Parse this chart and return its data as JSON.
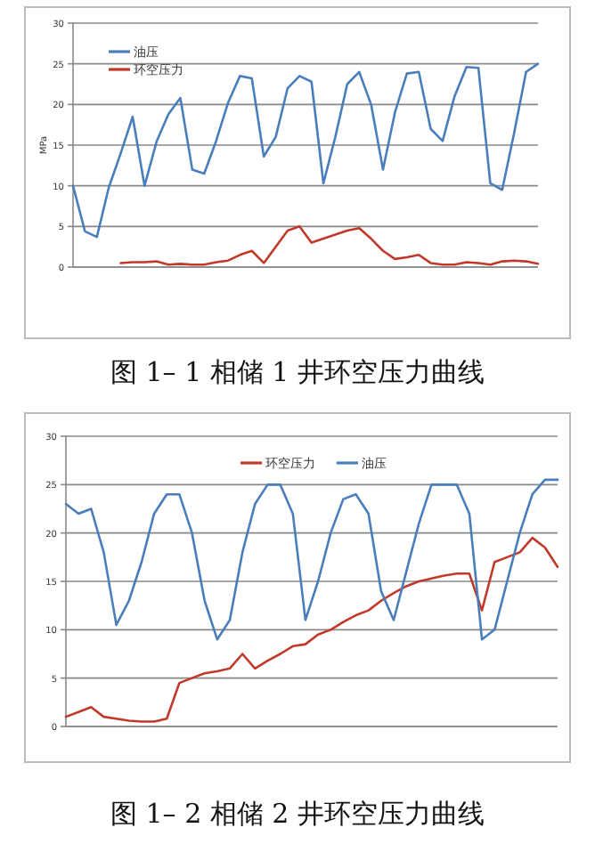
{
  "chart_data": [
    {
      "type": "line",
      "title": "图 1– 1 相储 1 井环空压力曲线",
      "ylabel": "MPa",
      "categories": [
        null,
        null,
        null,
        null,
        null,
        null,
        null,
        null,
        null,
        null,
        null,
        null,
        null,
        null,
        null,
        null,
        null,
        null,
        null,
        null,
        null,
        null,
        null,
        null,
        null,
        null,
        null,
        null,
        null,
        null,
        null,
        null,
        null,
        null,
        null,
        null,
        null,
        null,
        null,
        null
      ],
      "ylim": [
        0,
        30
      ],
      "yticks": [
        0,
        5,
        10,
        15,
        20,
        25,
        30
      ],
      "grid": "y",
      "legend": "top left",
      "series": [
        {
          "name": "油压",
          "color": "#4a7ebb",
          "values": [
            10,
            4.4,
            3.7,
            9.8,
            14,
            18.5,
            10,
            15.4,
            18.8,
            20.8,
            12,
            11.5,
            15.5,
            20.2,
            23.5,
            23.2,
            13.6,
            16,
            22,
            23.5,
            22.8,
            10.3,
            16,
            22.5,
            24,
            20,
            12,
            19,
            23.8,
            24,
            17,
            15.5,
            21,
            24.6,
            24.5,
            10.3,
            9.5,
            16.5,
            24,
            25
          ]
        },
        {
          "name": "环空压力",
          "color": "#c0392b",
          "values": [
            null,
            null,
            null,
            null,
            0.5,
            0.6,
            0.6,
            0.7,
            0.3,
            0.4,
            0.3,
            0.3,
            0.6,
            0.8,
            1.5,
            2,
            0.5,
            2.5,
            4.5,
            5,
            3,
            3.5,
            4,
            4.5,
            4.8,
            3.5,
            2,
            1,
            1.2,
            1.5,
            0.5,
            0.3,
            0.3,
            0.6,
            0.5,
            0.3,
            0.7,
            0.8,
            0.7,
            0.4
          ]
        }
      ]
    },
    {
      "type": "line",
      "title": "图 1– 2 相储 2 井环空压力曲线",
      "categories": [
        null,
        null,
        null,
        null,
        null,
        null,
        null,
        null,
        null,
        null,
        null,
        null,
        null,
        null,
        null,
        null,
        null,
        null,
        null,
        null,
        null,
        null,
        null,
        null,
        null,
        null,
        null,
        null,
        null,
        null,
        null,
        null,
        null,
        null,
        null,
        null,
        null,
        null,
        null,
        null
      ],
      "ylim": [
        0,
        30
      ],
      "yticks": [
        0,
        5,
        10,
        15,
        20,
        25,
        30
      ],
      "grid": "y",
      "legend": "top",
      "series": [
        {
          "name": "环空压力",
          "color": "#c0392b",
          "values": [
            1,
            1.5,
            2,
            1,
            0.8,
            0.6,
            0.5,
            0.5,
            0.8,
            4.5,
            5,
            5.5,
            5.7,
            6,
            7.5,
            6,
            6.8,
            7.5,
            8.3,
            8.5,
            9.5,
            10,
            10.8,
            11.5,
            12,
            13,
            13.8,
            14.5,
            15,
            15.3,
            15.6,
            15.8,
            15.8,
            12,
            17,
            17.5,
            18,
            19.5,
            18.5,
            16.5
          ]
        },
        {
          "name": "油压",
          "color": "#4a7ebb",
          "values": [
            23,
            22,
            22.5,
            18,
            10.5,
            13,
            17,
            22,
            24,
            24,
            20,
            13,
            9,
            11,
            18,
            23,
            25,
            25,
            22,
            11,
            15,
            20,
            23.5,
            24,
            22,
            14,
            11,
            16,
            21,
            25,
            25,
            25,
            22,
            9,
            10,
            15,
            20,
            24,
            25.5,
            25.5
          ]
        }
      ]
    }
  ]
}
